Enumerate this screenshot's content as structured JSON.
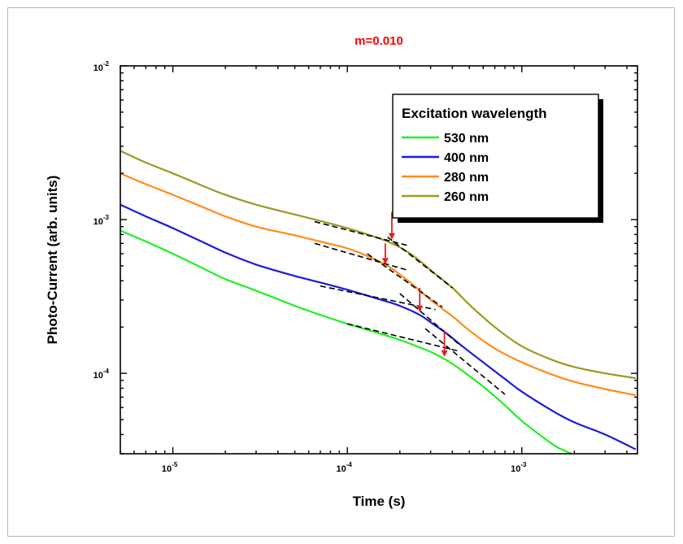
{
  "chart_data": {
    "type": "line",
    "title": "m=0.010",
    "title_color": "#ff0000",
    "xlabel": "Time (s)",
    "ylabel": "Photo-Current (arb. units)",
    "xscale": "log",
    "yscale": "log",
    "xlim": [
      5e-06,
      0.0046
    ],
    "ylim": [
      3e-05,
      0.01
    ],
    "x_ticks": [
      {
        "value": 1e-05,
        "base": "10",
        "exp": "-5"
      },
      {
        "value": 0.0001,
        "base": "10",
        "exp": "-4"
      },
      {
        "value": 0.001,
        "base": "10",
        "exp": "-3"
      }
    ],
    "y_ticks": [
      {
        "value": 0.0001,
        "base": "10",
        "exp": "-4"
      },
      {
        "value": 0.001,
        "base": "10",
        "exp": "-3"
      },
      {
        "value": 0.01,
        "base": "10",
        "exp": "-2"
      }
    ],
    "grid": false,
    "legend": {
      "title": "Excitation wavelength",
      "position": "top-right"
    },
    "series": [
      {
        "name": "530 nm",
        "color": "#22ee22",
        "x": [
          5e-06,
          7e-06,
          1e-05,
          1.5e-05,
          2e-05,
          3e-05,
          5e-05,
          7e-05,
          0.0001,
          0.00015,
          0.0002,
          0.00025,
          0.0003,
          0.00037,
          0.00045,
          0.0006,
          0.0008,
          0.001,
          0.0013,
          0.0016,
          0.002
        ],
        "y": [
          0.00085,
          0.00072,
          0.0006,
          0.00048,
          0.00041,
          0.000345,
          0.000275,
          0.00024,
          0.00021,
          0.000183,
          0.000165,
          0.00015,
          0.000138,
          0.000122,
          0.000105,
          8.2e-05,
          6.2e-05,
          4.9e-05,
          3.9e-05,
          3.3e-05,
          2.95e-05
        ]
      },
      {
        "name": "400 nm",
        "color": "#1a1adc",
        "x": [
          5e-06,
          7e-06,
          1e-05,
          1.5e-05,
          2e-05,
          3e-05,
          5e-05,
          7e-05,
          0.0001,
          0.00015,
          0.0002,
          0.00026,
          0.0003,
          0.00037,
          0.00045,
          0.0006,
          0.0008,
          0.001,
          0.0015,
          0.002,
          0.003,
          0.0045
        ],
        "y": [
          0.00125,
          0.00105,
          0.00088,
          0.00071,
          0.00061,
          0.00051,
          0.00043,
          0.00039,
          0.00035,
          0.000305,
          0.000275,
          0.00024,
          0.000215,
          0.000182,
          0.000152,
          0.000118,
          9.2e-05,
          7.6e-05,
          5.7e-05,
          4.8e-05,
          4e-05,
          3.2e-05
        ]
      },
      {
        "name": "280 nm",
        "color": "#ff8c1a",
        "x": [
          5e-06,
          7e-06,
          1e-05,
          1.5e-05,
          2e-05,
          3e-05,
          5e-05,
          7e-05,
          0.0001,
          0.00013,
          0.00017,
          0.0002,
          0.00025,
          0.0003,
          0.0004,
          0.0005,
          0.0007,
          0.001,
          0.0015,
          0.002,
          0.003,
          0.0045
        ],
        "y": [
          0.002,
          0.0017,
          0.00145,
          0.0012,
          0.00105,
          0.0009,
          0.00079,
          0.00072,
          0.00065,
          0.00058,
          0.0005,
          0.00044,
          0.00036,
          0.0003,
          0.000235,
          0.00019,
          0.000145,
          0.000118,
          9.8e-05,
          8.8e-05,
          7.9e-05,
          7.2e-05
        ]
      },
      {
        "name": "260 nm",
        "color": "#9a9a1e",
        "x": [
          5e-06,
          7e-06,
          1e-05,
          1.5e-05,
          2e-05,
          3e-05,
          5e-05,
          7e-05,
          0.0001,
          0.00015,
          0.00018,
          0.00022,
          0.00026,
          0.0003,
          0.0004,
          0.0005,
          0.0007,
          0.001,
          0.0015,
          0.002,
          0.003,
          0.0045
        ],
        "y": [
          0.0028,
          0.00235,
          0.002,
          0.00165,
          0.00145,
          0.00125,
          0.00108,
          0.00098,
          0.00088,
          0.00076,
          0.0007,
          0.00062,
          0.00054,
          0.00047,
          0.00036,
          0.00028,
          0.0002,
          0.00015,
          0.000122,
          0.00011,
          0.0001,
          9.3e-05
        ]
      }
    ],
    "tangent_lines": [
      {
        "x": [
          6.5e-05,
          0.00022
        ],
        "y": [
          0.00097,
          0.00068
        ]
      },
      {
        "x": [
          0.00017,
          0.0004
        ],
        "y": [
          0.00077,
          0.00036
        ]
      },
      {
        "x": [
          6.5e-05,
          0.00022
        ],
        "y": [
          0.0007,
          0.00047
        ]
      },
      {
        "x": [
          0.00013,
          0.00035
        ],
        "y": [
          0.0006,
          0.00027
        ]
      },
      {
        "x": [
          7e-05,
          0.00032
        ],
        "y": [
          0.00037,
          0.00026
        ]
      },
      {
        "x": [
          0.0002,
          0.00045
        ],
        "y": [
          0.00033,
          0.00015
        ]
      },
      {
        "x": [
          0.0001,
          0.00043
        ],
        "y": [
          0.00021,
          0.00014
        ]
      },
      {
        "x": [
          0.00028,
          0.0008
        ],
        "y": [
          0.000195,
          7.3e-05
        ]
      }
    ],
    "transition_markers": [
      {
        "x": 0.00018,
        "y_start": 0.00112,
        "y_end": 0.00074
      },
      {
        "x": 0.000165,
        "y_start": 0.0007,
        "y_end": 0.00051
      },
      {
        "x": 0.00026,
        "y_start": 0.00036,
        "y_end": 0.00025
      },
      {
        "x": 0.00036,
        "y_start": 0.00019,
        "y_end": 0.000128
      }
    ],
    "marker_color": "#e02020"
  }
}
